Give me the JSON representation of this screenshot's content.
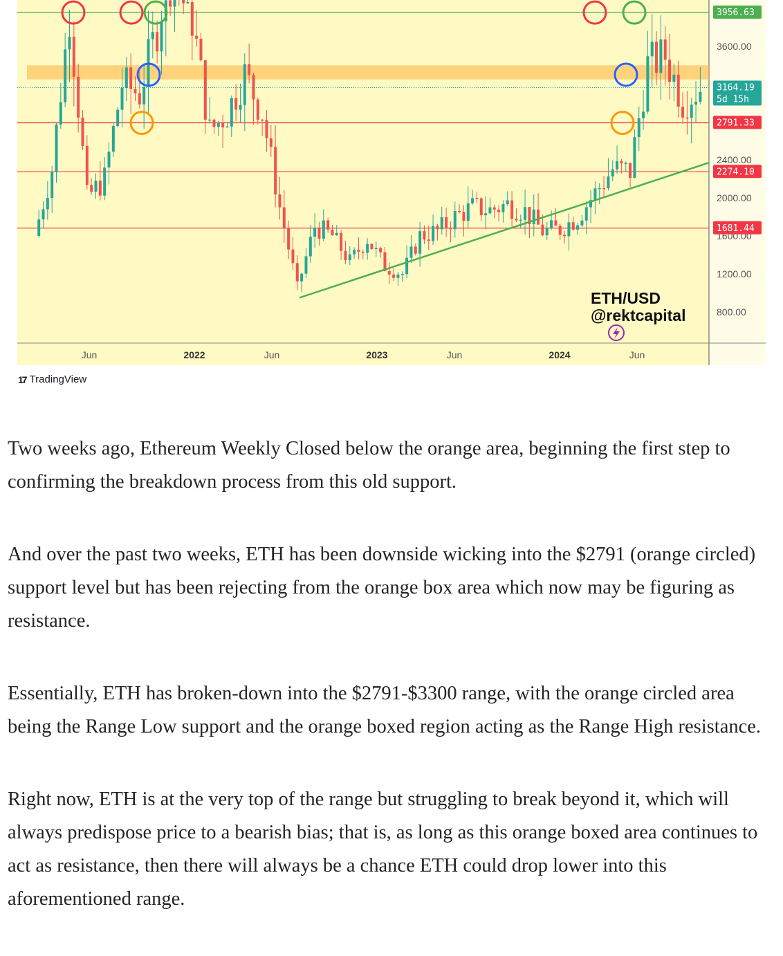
{
  "chart_data": {
    "type": "candlestick",
    "symbol_label": "ETH/USD",
    "author_label": "@rektcapital",
    "x_tick_labels": [
      "Jun",
      "2022",
      "Jun",
      "2023",
      "Jun",
      "2024",
      "Jun"
    ],
    "x_tick_bold": [
      false,
      true,
      false,
      true,
      false,
      true,
      false
    ],
    "y_tick_labels": [
      "3600.00",
      "2400.00",
      "2000.00",
      "1600.00",
      "1200.00",
      "800.00"
    ],
    "price_tags": [
      {
        "label": "3956.63",
        "value": 3956.63,
        "color": "#4caf50"
      },
      {
        "label": "3164.19",
        "sub": "5d 15h",
        "value": 3164.19,
        "color": "#26a69a"
      },
      {
        "label": "2791.33",
        "value": 2791.33,
        "color": "#f23645"
      },
      {
        "label": "2274.10",
        "value": 2274.1,
        "color": "#f23645"
      },
      {
        "label": "1681.44",
        "value": 1681.44,
        "color": "#f23645"
      }
    ],
    "horizontal_levels": [
      {
        "value": 3956.63,
        "color": "#4caf50"
      },
      {
        "value": 2791.33,
        "color": "#f23645"
      },
      {
        "value": 2274.1,
        "color": "#f23645"
      },
      {
        "value": 1681.44,
        "color": "#f23645"
      }
    ],
    "orange_box": {
      "low": 3250,
      "high": 3400
    },
    "trendline": {
      "start": {
        "date": "2022-06",
        "value": 950
      },
      "end": {
        "date": "2024-07",
        "value": 2370
      }
    },
    "annotated_circles": [
      {
        "date": "2021-05",
        "value": 3956,
        "color": "#f23645"
      },
      {
        "date": "2021-11",
        "value": 3956,
        "color": "#f23645"
      },
      {
        "date": "2021-12",
        "value": 3956,
        "color": "#4caf50"
      },
      {
        "date": "2021-12",
        "value": 3300,
        "color": "#2962ff"
      },
      {
        "date": "2021-12",
        "value": 2791,
        "color": "#ff9800"
      },
      {
        "date": "2024-03",
        "value": 3956,
        "color": "#f23645"
      },
      {
        "date": "2024-04",
        "value": 3956,
        "color": "#4caf50"
      },
      {
        "date": "2024-04",
        "value": 3300,
        "color": "#2962ff"
      },
      {
        "date": "2024-04",
        "value": 2791,
        "color": "#ff9800"
      }
    ],
    "price_path": [
      [
        "2021-03",
        1600
      ],
      [
        "2021-04",
        2300
      ],
      [
        "2021-05",
        3950
      ],
      [
        "2021-06",
        2000
      ],
      [
        "2021-07",
        2200
      ],
      [
        "2021-08",
        3200
      ],
      [
        "2021-09",
        3100
      ],
      [
        "2021-10",
        3800
      ],
      [
        "2021-11",
        4700
      ],
      [
        "2021-12",
        3900
      ],
      [
        "2022-01",
        2700
      ],
      [
        "2022-02",
        2900
      ],
      [
        "2022-03",
        3300
      ],
      [
        "2022-04",
        2900
      ],
      [
        "2022-05",
        1900
      ],
      [
        "2022-06",
        1050
      ],
      [
        "2022-07",
        1700
      ],
      [
        "2022-08",
        1600
      ],
      [
        "2022-09",
        1330
      ],
      [
        "2022-10",
        1570
      ],
      [
        "2022-11",
        1280
      ],
      [
        "2022-12",
        1200
      ],
      [
        "2023-01",
        1600
      ],
      [
        "2023-02",
        1650
      ],
      [
        "2023-03",
        1800
      ],
      [
        "2023-04",
        1900
      ],
      [
        "2023-05",
        1870
      ],
      [
        "2023-06",
        1930
      ],
      [
        "2023-07",
        1860
      ],
      [
        "2023-08",
        1650
      ],
      [
        "2023-09",
        1670
      ],
      [
        "2023-10",
        1800
      ],
      [
        "2023-11",
        2050
      ],
      [
        "2023-12",
        2300
      ],
      [
        "2024-01",
        2280
      ],
      [
        "2024-02",
        3400
      ],
      [
        "2024-03",
        3500
      ],
      [
        "2024-04",
        3020
      ],
      [
        "2024-05",
        3164
      ]
    ],
    "grid": false,
    "legend": "none"
  },
  "branding": {
    "tradingview": "TradingView",
    "tradingview_mark": "17"
  },
  "article": {
    "paragraphs": [
      "Two weeks ago, Ethereum Weekly Closed below the orange area, beginning the first step to confirming the breakdown process from this old support.",
      "And over the past two weeks, ETH has been downside wicking into the $2791 (orange circled) support level but has been rejecting from the orange box area which now may be figuring as resistance.",
      "Essentially, ETH has broken-down into the $2791-$3300 range, with the orange circled area being the Range Low support and the orange boxed region acting as the Range High resistance.",
      "Right now, ETH is at the very top of the range but struggling to break beyond it, which will always predispose price to a bearish bias; that is, as long as this orange boxed area continues to act as resistance, then there will always be a chance ETH could drop lower into this aforementioned range."
    ]
  }
}
